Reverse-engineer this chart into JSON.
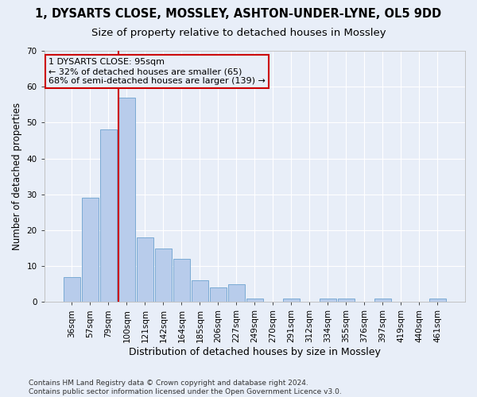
{
  "title_line1": "1, DYSARTS CLOSE, MOSSLEY, ASHTON-UNDER-LYNE, OL5 9DD",
  "title_line2": "Size of property relative to detached houses in Mossley",
  "xlabel": "Distribution of detached houses by size in Mossley",
  "ylabel": "Number of detached properties",
  "categories": [
    "36sqm",
    "57sqm",
    "79sqm",
    "100sqm",
    "121sqm",
    "142sqm",
    "164sqm",
    "185sqm",
    "206sqm",
    "227sqm",
    "249sqm",
    "270sqm",
    "291sqm",
    "312sqm",
    "334sqm",
    "355sqm",
    "376sqm",
    "397sqm",
    "419sqm",
    "440sqm",
    "461sqm"
  ],
  "values": [
    7,
    29,
    48,
    57,
    18,
    15,
    12,
    6,
    4,
    5,
    1,
    0,
    1,
    0,
    1,
    1,
    0,
    1,
    0,
    0,
    1
  ],
  "bar_color": "#b8cceb",
  "bar_edge_color": "#7aaad4",
  "highlight_line_color": "#cc0000",
  "annotation_box_color": "#cc0000",
  "annotation_line1": "1 DYSARTS CLOSE: 95sqm",
  "annotation_line2": "← 32% of detached houses are smaller (65)",
  "annotation_line3": "68% of semi-detached houses are larger (139) →",
  "ylim": [
    0,
    70
  ],
  "yticks": [
    0,
    10,
    20,
    30,
    40,
    50,
    60,
    70
  ],
  "background_color": "#e8eef8",
  "grid_color": "#ffffff",
  "footnote_line1": "Contains HM Land Registry data © Crown copyright and database right 2024.",
  "footnote_line2": "Contains public sector information licensed under the Open Government Licence v3.0.",
  "title_fontsize": 10.5,
  "subtitle_fontsize": 9.5,
  "xlabel_fontsize": 9,
  "ylabel_fontsize": 8.5,
  "tick_fontsize": 7.5,
  "annot_fontsize": 8,
  "footnote_fontsize": 6.5
}
